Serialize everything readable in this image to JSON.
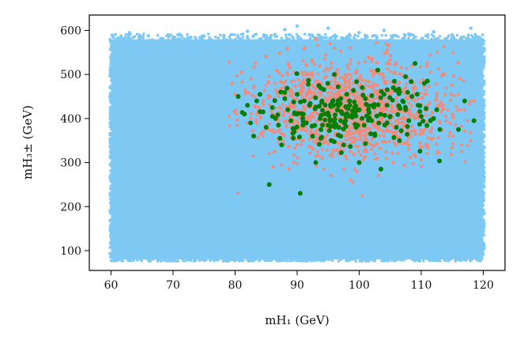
{
  "chart_data": {
    "type": "scatter",
    "title": "",
    "xlabel": "mH₁ (GeV)",
    "ylabel": "mH₃± (GeV)",
    "xlim": [
      56.5,
      123.5
    ],
    "ylim": [
      55,
      635
    ],
    "xticks": [
      60,
      70,
      80,
      90,
      100,
      110,
      120
    ],
    "yticks": [
      100,
      200,
      300,
      400,
      500,
      600
    ],
    "grid": false,
    "legend": "none",
    "series": [
      {
        "color": "#7ec8f4",
        "region": {
          "x": [
            60,
            120
          ],
          "y": [
            80,
            580
          ]
        },
        "note_points": [
          [
            60.3,
            585
          ],
          [
            61.5,
            570
          ],
          [
            63,
            595
          ],
          [
            64.5,
            578
          ],
          [
            66,
            588
          ],
          [
            70,
            582
          ],
          [
            75,
            587
          ],
          [
            80,
            575
          ],
          [
            82,
            598
          ],
          [
            85,
            588
          ],
          [
            88,
            602
          ],
          [
            90,
            610
          ],
          [
            92,
            590
          ],
          [
            95,
            605
          ],
          [
            100,
            595
          ],
          [
            104,
            600
          ],
          [
            108,
            592
          ],
          [
            112,
            597
          ],
          [
            115,
            590
          ],
          [
            118,
            605
          ]
        ]
      },
      {
        "color": "#f48a7a",
        "center": [
          99,
          420
        ],
        "spread": [
          8,
          55
        ],
        "points": [
          [
            79,
            528
          ],
          [
            79.5,
            480
          ],
          [
            80,
            455
          ],
          [
            80.5,
            230
          ],
          [
            81,
            505
          ],
          [
            82,
            390
          ],
          [
            83,
            470
          ],
          [
            84,
            420
          ],
          [
            84.5,
            360
          ],
          [
            85,
            540
          ],
          [
            85.5,
            320
          ],
          [
            86,
            410
          ],
          [
            86.5,
            480
          ],
          [
            87,
            345
          ],
          [
            87.5,
            295
          ],
          [
            88,
            455
          ],
          [
            88.5,
            560
          ],
          [
            89,
            380
          ],
          [
            89.5,
            505
          ],
          [
            90,
            340
          ],
          [
            90.5,
            230
          ],
          [
            91,
            445
          ],
          [
            91.5,
            520
          ],
          [
            92,
            395
          ],
          [
            92.5,
            365
          ],
          [
            93,
            580
          ],
          [
            93.5,
            475
          ],
          [
            94,
            310
          ],
          [
            94.5,
            435
          ],
          [
            95,
            510
          ],
          [
            95.5,
            390
          ],
          [
            96,
            560
          ],
          [
            96.5,
            330
          ],
          [
            97,
            470
          ],
          [
            97.5,
            285
          ],
          [
            98,
            430
          ],
          [
            98.5,
            525
          ],
          [
            99,
            255
          ],
          [
            99.5,
            405
          ],
          [
            100,
            490
          ],
          [
            100.5,
            225
          ],
          [
            101,
            375
          ],
          [
            101.5,
            540
          ],
          [
            102,
            440
          ],
          [
            102.5,
            320
          ],
          [
            103,
            505
          ],
          [
            103.5,
            410
          ],
          [
            104,
            360
          ],
          [
            104.5,
            555
          ],
          [
            105,
            455
          ],
          [
            105.5,
            300
          ],
          [
            106,
            420
          ],
          [
            106.5,
            500
          ],
          [
            107,
            380
          ],
          [
            107.5,
            470
          ],
          [
            108,
            340
          ],
          [
            108.5,
            520
          ],
          [
            109,
            400
          ],
          [
            109.5,
            445
          ],
          [
            110,
            365
          ],
          [
            110.5,
            485
          ],
          [
            111,
            420
          ],
          [
            111.5,
            505
          ],
          [
            112,
            355
          ],
          [
            112.5,
            450
          ],
          [
            113,
            390
          ],
          [
            113.5,
            430
          ],
          [
            114,
            470
          ],
          [
            114.5,
            360
          ],
          [
            115,
            410
          ],
          [
            115.5,
            385
          ],
          [
            116,
            455
          ],
          [
            116.5,
            340
          ],
          [
            117,
            420
          ],
          [
            117.5,
            395
          ],
          [
            118,
            350
          ],
          [
            118.5,
            440
          ]
        ]
      },
      {
        "color": "#007f00",
        "points": [
          [
            80.5,
            450
          ],
          [
            81.5,
            410
          ],
          [
            82,
            430
          ],
          [
            82.5,
            390
          ],
          [
            83,
            360
          ],
          [
            83.5,
            440
          ],
          [
            84,
            455
          ],
          [
            84.5,
            415
          ],
          [
            85,
            380
          ],
          [
            85.5,
            250
          ],
          [
            86,
            425
          ],
          [
            86.5,
            400
          ],
          [
            87,
            385
          ],
          [
            87.5,
            340
          ],
          [
            88,
            445
          ],
          [
            88.5,
            420
          ],
          [
            89,
            395
          ],
          [
            89.5,
            370
          ],
          [
            90,
            455
          ],
          [
            90.5,
            230
          ],
          [
            91,
            410
          ],
          [
            91.5,
            390
          ],
          [
            92,
            430
          ],
          [
            92.5,
            360
          ],
          [
            93,
            300
          ],
          [
            93.5,
            475
          ],
          [
            94,
            440
          ],
          [
            94.5,
            410
          ],
          [
            95,
            385
          ],
          [
            95.5,
            350
          ],
          [
            96,
            500
          ],
          [
            96.5,
            420
          ],
          [
            97,
            395
          ],
          [
            97.5,
            340
          ],
          [
            98,
            455
          ],
          [
            98.5,
            430
          ],
          [
            99,
            410
          ],
          [
            99.5,
            380
          ],
          [
            100,
            300
          ],
          [
            100.5,
            470
          ],
          [
            101,
            445
          ],
          [
            101.5,
            420
          ],
          [
            102,
            395
          ],
          [
            102.5,
            365
          ],
          [
            103,
            510
          ],
          [
            103.5,
            285
          ],
          [
            104,
            455
          ],
          [
            104.5,
            430
          ],
          [
            105,
            405
          ],
          [
            105.5,
            470
          ],
          [
            106,
            380
          ],
          [
            106.5,
            350
          ],
          [
            107,
            440
          ],
          [
            107.5,
            420
          ],
          [
            108,
            395
          ],
          [
            108.5,
            450
          ],
          [
            109,
            525
          ],
          [
            109.5,
            430
          ],
          [
            110,
            405
          ],
          [
            110.5,
            480
          ],
          [
            111,
            485
          ],
          [
            111.5,
            395
          ],
          [
            112,
            400
          ],
          [
            112.5,
            420
          ],
          [
            113,
            375
          ],
          [
            116,
            375
          ],
          [
            117,
            440
          ],
          [
            118.5,
            395
          ]
        ]
      }
    ]
  }
}
